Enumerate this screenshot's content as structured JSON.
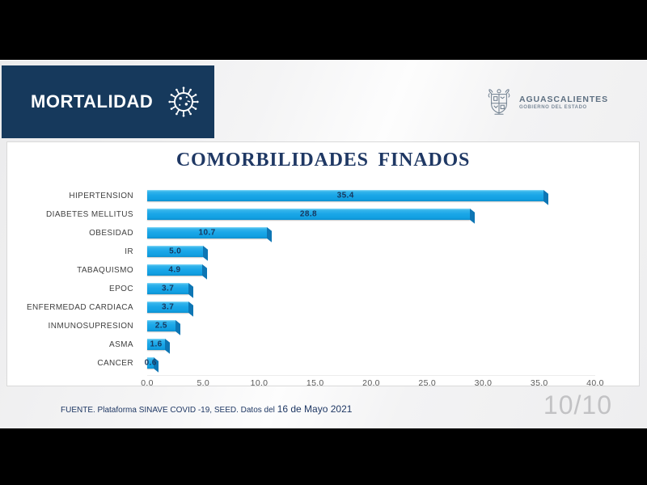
{
  "slide": {
    "header": {
      "title": "MORTALIDAD"
    },
    "logo": {
      "name": "AGUASCALIENTES",
      "subtitle": "GOBIERNO DEL ESTADO"
    },
    "footer": {
      "source_prefix": "FUENTE. Plataforma SINAVE COVID -19, SEED. Datos del ",
      "source_date": "16 de Mayo 2021"
    },
    "page_indicator": "10/10"
  },
  "chart_data": {
    "type": "bar",
    "orientation": "horizontal",
    "title": "COMORBILIDADES FINADOS",
    "categories": [
      "HIPERTENSION",
      "DIABETES MELLITUS",
      "OBESIDAD",
      "IR",
      "TABAQUISMO",
      "EPOC",
      "ENFERMEDAD CARDIACA",
      "INMUNOSUPRESION",
      "ASMA",
      "CANCER"
    ],
    "values": [
      35.4,
      28.8,
      10.7,
      5.0,
      4.9,
      3.7,
      3.7,
      2.5,
      1.6,
      0.6
    ],
    "xlabel": "",
    "ylabel": "",
    "xlim": [
      0,
      40
    ],
    "xticks": [
      0,
      5,
      10,
      15,
      20,
      25,
      30,
      35,
      40
    ],
    "xtick_labels": [
      "0.0",
      "5.0",
      "10.0",
      "15.0",
      "20.0",
      "25.0",
      "30.0",
      "35.0",
      "40.0"
    ],
    "grid": false,
    "legend": null,
    "value_labels": true,
    "bar_style": "3d-cyan"
  },
  "colors": {
    "header_bg": "#16395C",
    "title_text": "#1F3864",
    "bar_fill": "#1BA7E8",
    "bar_cap": "#0E76B4",
    "value_label": "#17375E",
    "axis_text": "#595959",
    "category_text": "#3F3F3F",
    "footer_text": "#1F3864",
    "page_indicator_text": "#C2C2C4",
    "slide_bg": "#F1F1F2",
    "letterbox": "#000000"
  }
}
